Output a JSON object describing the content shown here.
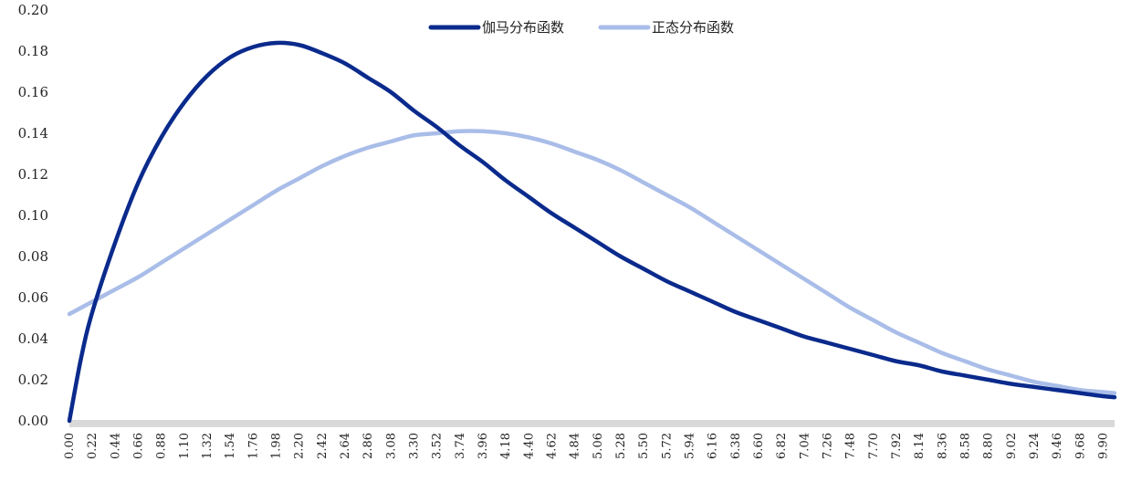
{
  "chart_data": {
    "type": "line",
    "title": "",
    "xlabel": "",
    "ylabel": "",
    "ylim": [
      0,
      0.2
    ],
    "xlim": [
      0,
      10.01
    ],
    "y_ticks": [
      "0.00",
      "0.02",
      "0.04",
      "0.06",
      "0.08",
      "0.10",
      "0.12",
      "0.14",
      "0.16",
      "0.18",
      "0.20"
    ],
    "x_ticks": [
      "0.00",
      "0.22",
      "0.44",
      "0.66",
      "0.88",
      "1.10",
      "1.32",
      "1.54",
      "1.76",
      "1.98",
      "2.20",
      "2.42",
      "2.64",
      "2.86",
      "3.08",
      "3.30",
      "3.52",
      "3.74",
      "3.96",
      "4.18",
      "4.40",
      "4.62",
      "4.84",
      "5.06",
      "5.28",
      "5.50",
      "5.72",
      "5.94",
      "6.16",
      "6.38",
      "6.60",
      "6.82",
      "7.04",
      "7.26",
      "7.48",
      "7.70",
      "7.92",
      "8.14",
      "8.36",
      "8.58",
      "8.80",
      "9.02",
      "9.24",
      "9.46",
      "9.68",
      "9.90"
    ],
    "grid": false,
    "legend_position": "top-center",
    "series": [
      {
        "name": "伽马分布函数",
        "color": "#0a2a8c",
        "x": [
          0.0,
          0.11,
          0.22,
          0.44,
          0.66,
          0.88,
          1.1,
          1.32,
          1.54,
          1.76,
          1.98,
          2.2,
          2.42,
          2.64,
          2.86,
          3.08,
          3.3,
          3.52,
          3.74,
          3.96,
          4.18,
          4.4,
          4.62,
          4.84,
          5.06,
          5.28,
          5.5,
          5.72,
          5.94,
          6.16,
          6.38,
          6.6,
          6.82,
          7.04,
          7.26,
          7.48,
          7.7,
          7.92,
          8.14,
          8.36,
          8.58,
          8.8,
          9.02,
          9.24,
          9.46,
          9.68,
          9.9,
          10.01
        ],
        "y": [
          0.0,
          0.03,
          0.053,
          0.087,
          0.116,
          0.138,
          0.155,
          0.168,
          0.177,
          0.182,
          0.184,
          0.183,
          0.179,
          0.174,
          0.167,
          0.16,
          0.151,
          0.143,
          0.134,
          0.126,
          0.117,
          0.109,
          0.101,
          0.094,
          0.087,
          0.08,
          0.074,
          0.068,
          0.063,
          0.058,
          0.053,
          0.049,
          0.045,
          0.041,
          0.038,
          0.035,
          0.032,
          0.029,
          0.027,
          0.024,
          0.022,
          0.02,
          0.018,
          0.0165,
          0.015,
          0.0135,
          0.012,
          0.0115
        ]
      },
      {
        "name": "正态分布函数",
        "color": "#a9bde8",
        "x": [
          0.0,
          0.22,
          0.44,
          0.66,
          0.88,
          1.1,
          1.32,
          1.54,
          1.76,
          1.98,
          2.2,
          2.42,
          2.64,
          2.86,
          3.08,
          3.3,
          3.52,
          3.74,
          3.96,
          4.18,
          4.4,
          4.62,
          4.84,
          5.06,
          5.28,
          5.5,
          5.72,
          5.94,
          6.16,
          6.38,
          6.6,
          6.82,
          7.04,
          7.26,
          7.48,
          7.7,
          7.92,
          8.14,
          8.36,
          8.58,
          8.8,
          9.02,
          9.24,
          9.46,
          9.68,
          9.9,
          10.01
        ],
        "y": [
          0.052,
          0.058,
          0.064,
          0.07,
          0.077,
          0.084,
          0.091,
          0.098,
          0.105,
          0.112,
          0.118,
          0.124,
          0.129,
          0.133,
          0.136,
          0.139,
          0.14,
          0.141,
          0.141,
          0.14,
          0.138,
          0.135,
          0.131,
          0.127,
          0.122,
          0.116,
          0.11,
          0.104,
          0.097,
          0.09,
          0.083,
          0.076,
          0.069,
          0.062,
          0.055,
          0.049,
          0.043,
          0.038,
          0.033,
          0.029,
          0.025,
          0.022,
          0.019,
          0.017,
          0.015,
          0.014,
          0.0135
        ]
      }
    ]
  }
}
